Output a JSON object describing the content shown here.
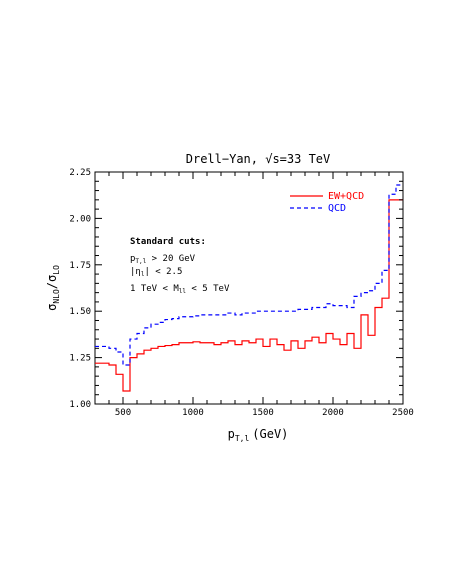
{
  "chart_data": {
    "type": "line",
    "title": "Drell−Yan, √s=33 TeV",
    "xlabel": "p",
    "xlabel_sub": "T,l",
    "xlabel_unit": "(GeV)",
    "ylabel_main": "σ",
    "ylabel_sub_num": "NLO",
    "ylabel_sub_den": "LO",
    "xlim": [
      300,
      2500
    ],
    "ylim": [
      1.0,
      2.25
    ],
    "xticks": [
      500,
      1000,
      1500,
      2000,
      2500
    ],
    "xtick_labels": [
      "500",
      "1000",
      "1500",
      "2000",
      "2500"
    ],
    "yticks": [
      1.0,
      1.25,
      1.5,
      1.75,
      2.0,
      2.25
    ],
    "ytick_labels": [
      "1.00",
      "1.25",
      "1.50",
      "1.75",
      "2.00",
      "2.25"
    ],
    "bin_edges": [
      300,
      350,
      400,
      450,
      500,
      550,
      600,
      650,
      700,
      750,
      800,
      850,
      900,
      950,
      1000,
      1050,
      1100,
      1150,
      1200,
      1250,
      1300,
      1350,
      1400,
      1450,
      1500,
      1550,
      1600,
      1650,
      1700,
      1750,
      1800,
      1850,
      1900,
      1950,
      2000,
      2050,
      2100,
      2150,
      2200,
      2250,
      2300,
      2350,
      2400,
      2450,
      2500
    ],
    "legend_position": "top-right",
    "series": [
      {
        "name": "EW+QCD",
        "color": "#ff0000",
        "dash": "solid",
        "values": [
          1.22,
          1.22,
          1.21,
          1.16,
          1.07,
          1.25,
          1.27,
          1.29,
          1.3,
          1.31,
          1.315,
          1.32,
          1.33,
          1.33,
          1.335,
          1.33,
          1.33,
          1.32,
          1.33,
          1.34,
          1.32,
          1.34,
          1.33,
          1.35,
          1.31,
          1.35,
          1.32,
          1.29,
          1.34,
          1.3,
          1.34,
          1.36,
          1.33,
          1.38,
          1.35,
          1.32,
          1.38,
          1.3,
          1.48,
          1.37,
          1.52,
          1.57,
          2.1,
          2.1
        ]
      },
      {
        "name": "QCD",
        "color": "#0000ff",
        "dash": "dashed",
        "values": [
          1.31,
          1.31,
          1.3,
          1.28,
          1.21,
          1.35,
          1.38,
          1.41,
          1.43,
          1.44,
          1.455,
          1.46,
          1.47,
          1.47,
          1.475,
          1.48,
          1.48,
          1.48,
          1.48,
          1.49,
          1.48,
          1.49,
          1.49,
          1.5,
          1.5,
          1.5,
          1.5,
          1.5,
          1.5,
          1.51,
          1.51,
          1.52,
          1.52,
          1.54,
          1.53,
          1.53,
          1.52,
          1.58,
          1.6,
          1.61,
          1.65,
          1.72,
          2.13,
          2.18
        ]
      }
    ],
    "annotation": {
      "heading": "Standard cuts:",
      "lines": [
        {
          "main": "p",
          "sub": "T,l",
          "rest": " > 20 GeV"
        },
        {
          "main": "|η",
          "sub": "l",
          "rest": "| < 2.5"
        },
        {
          "main": "1 TeV < M",
          "sub": "ll",
          "rest": " < 5 TeV"
        }
      ]
    }
  }
}
